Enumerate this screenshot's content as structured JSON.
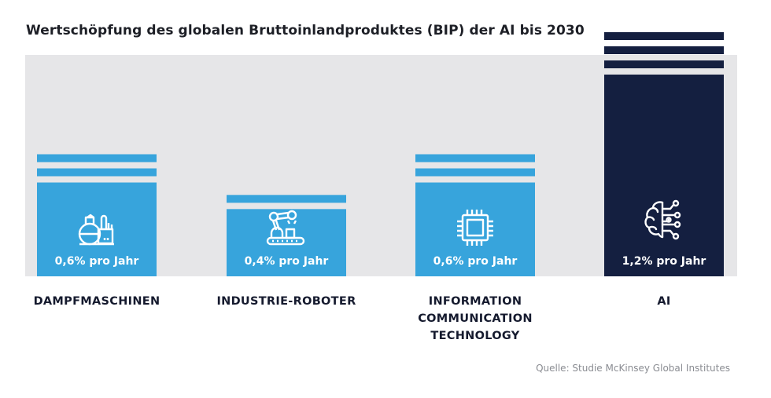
{
  "chart_data": {
    "type": "bar",
    "title": "Wertschöpfung des globalen Bruttoinlandproduktes (BIP) der AI bis 2030",
    "categories": [
      "DAMPFMASCHINEN",
      "INDUSTRIE-ROBOTER",
      "INFORMATION COMMUNICATION TECHNOLOGY",
      "AI"
    ],
    "category_lines": [
      [
        "DAMPFMASCHINEN"
      ],
      [
        "INDUSTRIE-ROBOTER"
      ],
      [
        "INFORMATION",
        "COMMUNICATION",
        "TECHNOLOGY"
      ],
      [
        "AI"
      ]
    ],
    "values": [
      0.6,
      0.4,
      0.6,
      1.2
    ],
    "value_labels": [
      "0,6% pro Jahr",
      "0,4% pro Jahr",
      "0,6% pro Jahr",
      "1,2% pro Jahr"
    ],
    "unit": "% pro Jahr",
    "icons": [
      "steam-plant-icon",
      "robot-arm-icon",
      "microchip-icon",
      "ai-brain-icon"
    ],
    "colors": [
      "#37a4dc",
      "#37a4dc",
      "#37a4dc",
      "#141f40"
    ],
    "xlabel": "",
    "ylabel": "",
    "ylim": [
      0,
      1.2
    ],
    "grid": false,
    "legend": "none",
    "source": "Quelle: Studie McKinsey Global Institutes"
  },
  "colors": {
    "accent": "#37a4dc",
    "highlight": "#141f40",
    "panel": "#e6e6e8",
    "text": "#1d1f26",
    "muted": "#8a8c92"
  }
}
